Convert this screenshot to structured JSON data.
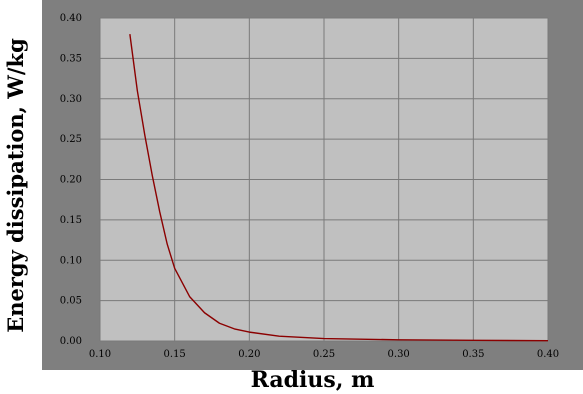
{
  "chart_data": {
    "type": "line",
    "title": "",
    "xlabel": "Radius, m",
    "ylabel": "Energy dissipation, W/kg",
    "xlim": [
      0.1,
      0.4
    ],
    "ylim": [
      0.0,
      0.4
    ],
    "x_ticks": [
      "0.10",
      "0.15",
      "0.20",
      "0.25",
      "0.30",
      "0.35",
      "0.40"
    ],
    "y_ticks": [
      "0.00",
      "0.05",
      "0.10",
      "0.15",
      "0.20",
      "0.25",
      "0.30",
      "0.35",
      "0.40"
    ],
    "grid": true,
    "background": "#c0c0c0",
    "frame_color": "#7f7f7f",
    "series": [
      {
        "color": "#8b0000",
        "x": [
          0.12,
          0.125,
          0.13,
          0.135,
          0.14,
          0.145,
          0.15,
          0.16,
          0.17,
          0.18,
          0.19,
          0.2,
          0.22,
          0.25,
          0.3,
          0.35,
          0.4
        ],
        "y": [
          0.38,
          0.31,
          0.255,
          0.205,
          0.16,
          0.12,
          0.09,
          0.055,
          0.035,
          0.022,
          0.015,
          0.011,
          0.006,
          0.003,
          0.0015,
          0.0008,
          0.0004
        ]
      }
    ]
  }
}
